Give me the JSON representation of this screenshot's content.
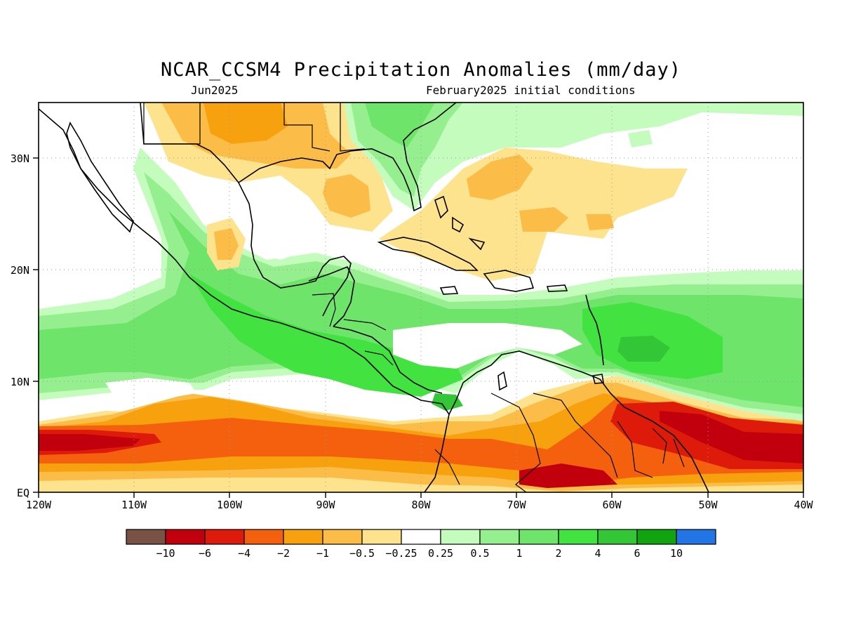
{
  "title": "NCAR_CCSM4 Precipitation Anomalies (mm/day)",
  "subtitle_left": "Jun2025",
  "subtitle_right": "February2025 initial conditions",
  "map": {
    "lon_range": [
      -120,
      -40
    ],
    "lat_range": [
      0,
      35
    ],
    "x_ticks": [
      {
        "lon": -120,
        "label": "120W"
      },
      {
        "lon": -110,
        "label": "110W"
      },
      {
        "lon": -100,
        "label": "100W"
      },
      {
        "lon": -90,
        "label": "90W"
      },
      {
        "lon": -80,
        "label": "80W"
      },
      {
        "lon": -70,
        "label": "70W"
      },
      {
        "lon": -60,
        "label": "60W"
      },
      {
        "lon": -50,
        "label": "50W"
      },
      {
        "lon": -40,
        "label": "40W"
      }
    ],
    "y_ticks": [
      {
        "lat": 0,
        "label": "EQ"
      },
      {
        "lat": 10,
        "label": "10N"
      },
      {
        "lat": 20,
        "label": "20N"
      },
      {
        "lat": 30,
        "label": "30N"
      }
    ]
  },
  "colorbar": {
    "colors": [
      "#7a5145",
      "#c2000d",
      "#de1b0b",
      "#f5600f",
      "#f8a10e",
      "#fbbd48",
      "#fde38e",
      "#ffffff",
      "#c4fcbe",
      "#96ef8e",
      "#6ee46a",
      "#42e341",
      "#33c737",
      "#11a40f",
      "#2374e4"
    ],
    "labels": [
      "−10",
      "−6",
      "−4",
      "−2",
      "−1",
      "−0.5",
      "−0.25",
      "0.25",
      "0.5",
      "1",
      "2",
      "4",
      "6",
      "10"
    ]
  }
}
